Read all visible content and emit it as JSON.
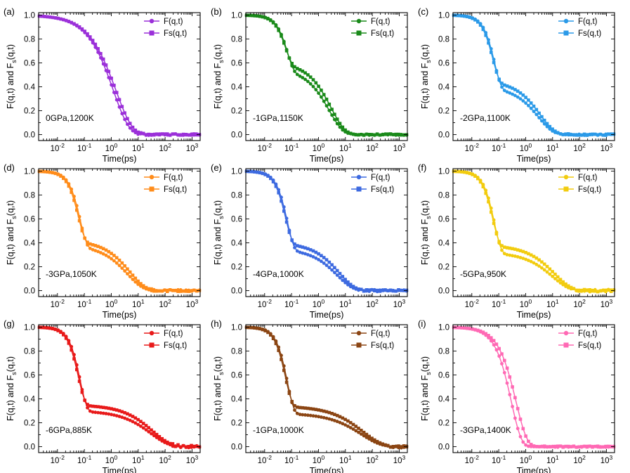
{
  "shared": {
    "xlabel": "Time(ps)",
    "ylabel_main": "F(q,t) and F",
    "ylabel_sub": "s",
    "ylabel_tail": "(q,t)",
    "x_tick_base": "10",
    "x_tick_exponents": [
      "-2",
      "-1",
      "0",
      "1",
      "2",
      "3"
    ],
    "y_tick_labels": [
      "0.0",
      "0.2",
      "0.4",
      "0.6",
      "0.8",
      "1.0"
    ],
    "legend": [
      "F(q,t)",
      "Fs(q,t)"
    ]
  },
  "chart_data": [
    {
      "type": "line",
      "panel_label": "(a)",
      "annotation": "0GPa,1200K",
      "color": "#9b30d9",
      "xscale": "log",
      "xlim": [
        0.002,
        2000
      ],
      "ylim": [
        -0.05,
        1.02
      ],
      "curves": {
        "F": {
          "beta": 0.75,
          "tau": 1.2,
          "cutoff": 8,
          "noise": 0.006
        },
        "Fs": {
          "beta": 0.72,
          "tau": 1.5,
          "cutoff": 10,
          "noise": 0.006
        }
      },
      "series": [
        {
          "name": "F(q,t)",
          "marker": "circle"
        },
        {
          "name": "Fs(q,t)",
          "marker": "square"
        }
      ]
    },
    {
      "type": "line",
      "panel_label": "(b)",
      "annotation": "-1GPa,1150K",
      "color": "#1a8a1a",
      "xscale": "log",
      "xlim": [
        0.002,
        2000
      ],
      "ylim": [
        -0.05,
        1.02
      ],
      "curves": {
        "F": {
          "fa": 0.55,
          "ta": 0.07,
          "ba": 1.8,
          "tb": 2.5,
          "bb": 0.85,
          "cutoff": 15,
          "noise": 0.006
        },
        "Fs": {
          "fa": 0.6,
          "ta": 0.06,
          "ba": 1.8,
          "tb": 3.0,
          "bb": 0.85,
          "cutoff": 18,
          "noise": 0.006
        }
      },
      "series": [
        {
          "name": "F(q,t)",
          "marker": "circle"
        },
        {
          "name": "Fs(q,t)",
          "marker": "square"
        }
      ]
    },
    {
      "type": "line",
      "panel_label": "(c)",
      "annotation": "-2GPa,1100K",
      "color": "#2b9ae8",
      "xscale": "log",
      "xlim": [
        0.002,
        2000
      ],
      "ylim": [
        -0.05,
        1.02
      ],
      "curves": {
        "F": {
          "fa": 0.4,
          "ta": 0.07,
          "ba": 1.8,
          "tb": 3.0,
          "bb": 0.8,
          "cutoff": 15,
          "noise": 0.006
        },
        "Fs": {
          "fa": 0.45,
          "ta": 0.06,
          "ba": 1.8,
          "tb": 3.5,
          "bb": 0.8,
          "cutoff": 18,
          "noise": 0.006
        }
      },
      "series": [
        {
          "name": "F(q,t)",
          "marker": "circle"
        },
        {
          "name": "Fs(q,t)",
          "marker": "square"
        }
      ]
    },
    {
      "type": "line",
      "panel_label": "(d)",
      "annotation": "-3GPa,1050K",
      "color": "#ff8c1a",
      "xscale": "log",
      "xlim": [
        0.002,
        2000
      ],
      "ylim": [
        -0.05,
        1.02
      ],
      "curves": {
        "F": {
          "fa": 0.38,
          "ta": 0.07,
          "ba": 1.8,
          "tb": 4.0,
          "bb": 0.75,
          "cutoff": 25,
          "noise": 0.008
        },
        "Fs": {
          "fa": 0.42,
          "ta": 0.06,
          "ba": 1.8,
          "tb": 5.0,
          "bb": 0.75,
          "cutoff": 30,
          "noise": 0.008
        }
      },
      "series": [
        {
          "name": "F(q,t)",
          "marker": "circle"
        },
        {
          "name": "Fs(q,t)",
          "marker": "square"
        }
      ]
    },
    {
      "type": "line",
      "panel_label": "(e)",
      "annotation": "-4GPa,1000K",
      "color": "#3d6ae0",
      "xscale": "log",
      "xlim": [
        0.002,
        2000
      ],
      "ylim": [
        -0.05,
        1.02
      ],
      "curves": {
        "F": {
          "fa": 0.35,
          "ta": 0.07,
          "ba": 1.8,
          "tb": 5.0,
          "bb": 0.75,
          "cutoff": 30,
          "noise": 0.008
        },
        "Fs": {
          "fa": 0.4,
          "ta": 0.06,
          "ba": 1.8,
          "tb": 6.0,
          "bb": 0.75,
          "cutoff": 35,
          "noise": 0.008
        }
      },
      "series": [
        {
          "name": "F(q,t)",
          "marker": "circle"
        },
        {
          "name": "Fs(q,t)",
          "marker": "square"
        }
      ]
    },
    {
      "type": "line",
      "panel_label": "(f)",
      "annotation": "-5GPa,950K",
      "color": "#f2cc0f",
      "xscale": "log",
      "xlim": [
        0.002,
        2000
      ],
      "ylim": [
        -0.05,
        1.02
      ],
      "curves": {
        "F": {
          "fa": 0.32,
          "ta": 0.07,
          "ba": 1.8,
          "tb": 10.0,
          "bb": 0.7,
          "cutoff": 60,
          "noise": 0.01
        },
        "Fs": {
          "fa": 0.38,
          "ta": 0.06,
          "ba": 1.8,
          "tb": 12.0,
          "bb": 0.7,
          "cutoff": 70,
          "noise": 0.01
        }
      },
      "series": [
        {
          "name": "F(q,t)",
          "marker": "circle"
        },
        {
          "name": "Fs(q,t)",
          "marker": "square"
        }
      ]
    },
    {
      "type": "line",
      "panel_label": "(g)",
      "annotation": "-6GPa,885K",
      "color": "#e81a1a",
      "xscale": "log",
      "xlim": [
        0.002,
        2000
      ],
      "ylim": [
        -0.05,
        1.02
      ],
      "curves": {
        "F": {
          "fa": 0.3,
          "ta": 0.07,
          "ba": 1.8,
          "tb": 30.0,
          "bb": 0.65,
          "cutoff": 150,
          "noise": 0.01
        },
        "Fs": {
          "fa": 0.35,
          "ta": 0.06,
          "ba": 1.8,
          "tb": 35.0,
          "bb": 0.65,
          "cutoff": 180,
          "noise": 0.01
        }
      },
      "series": [
        {
          "name": "F(q,t)",
          "marker": "circle"
        },
        {
          "name": "Fs(q,t)",
          "marker": "square"
        }
      ]
    },
    {
      "type": "line",
      "panel_label": "(h)",
      "annotation": "-1GPa,1000K",
      "color": "#8b4513",
      "xscale": "log",
      "xlim": [
        0.002,
        2000
      ],
      "ylim": [
        -0.05,
        1.02
      ],
      "curves": {
        "F": {
          "fa": 0.28,
          "ta": 0.07,
          "ba": 1.8,
          "tb": 40.0,
          "bb": 0.6,
          "cutoff": 400,
          "noise": 0.01
        },
        "Fs": {
          "fa": 0.34,
          "ta": 0.06,
          "ba": 1.8,
          "tb": 45.0,
          "bb": 0.6,
          "cutoff": 450,
          "noise": 0.01
        }
      },
      "series": [
        {
          "name": "F(q,t)",
          "marker": "circle"
        },
        {
          "name": "Fs(q,t)",
          "marker": "square"
        }
      ]
    },
    {
      "type": "line",
      "panel_label": "(i)",
      "annotation": "-3GPa,1400K",
      "color": "#ff69b4",
      "xscale": "log",
      "xlim": [
        0.002,
        2000
      ],
      "ylim": [
        -0.05,
        1.02
      ],
      "curves": {
        "F": {
          "beta": 1.2,
          "tau": 0.3,
          "cutoff": 3,
          "noise": 0.005
        },
        "Fs": {
          "beta": 1.1,
          "tau": 0.45,
          "cutoff": 4,
          "noise": 0.005
        }
      },
      "series": [
        {
          "name": "F(q,t)",
          "marker": "circle"
        },
        {
          "name": "Fs(q,t)",
          "marker": "square"
        }
      ]
    }
  ]
}
